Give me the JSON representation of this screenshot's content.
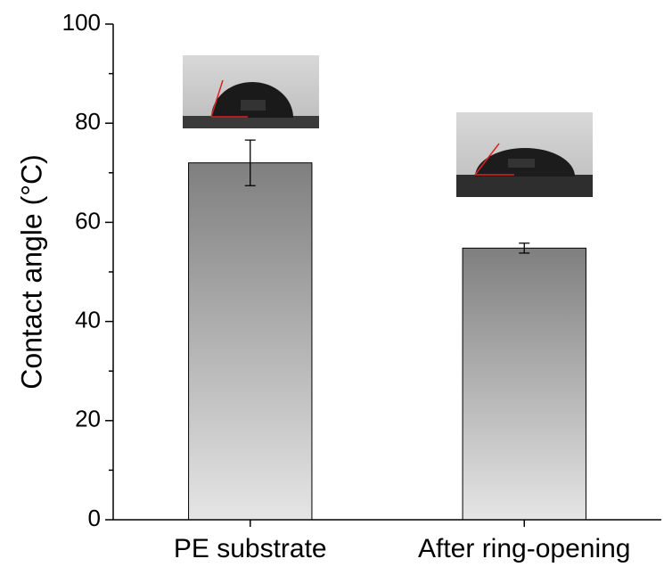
{
  "chart_data": {
    "type": "bar",
    "ylabel": "Contact angle (°C)",
    "categories": [
      "PE substrate",
      "After ring-opening"
    ],
    "values": [
      72,
      54.8
    ],
    "errors": [
      4.6,
      1.0
    ],
    "color": "#7f7f7f",
    "ylim": [
      0,
      100
    ],
    "yticks": [
      0,
      20,
      40,
      60,
      80,
      100
    ],
    "yminorticks": [
      10,
      30,
      50,
      70,
      90
    ]
  }
}
